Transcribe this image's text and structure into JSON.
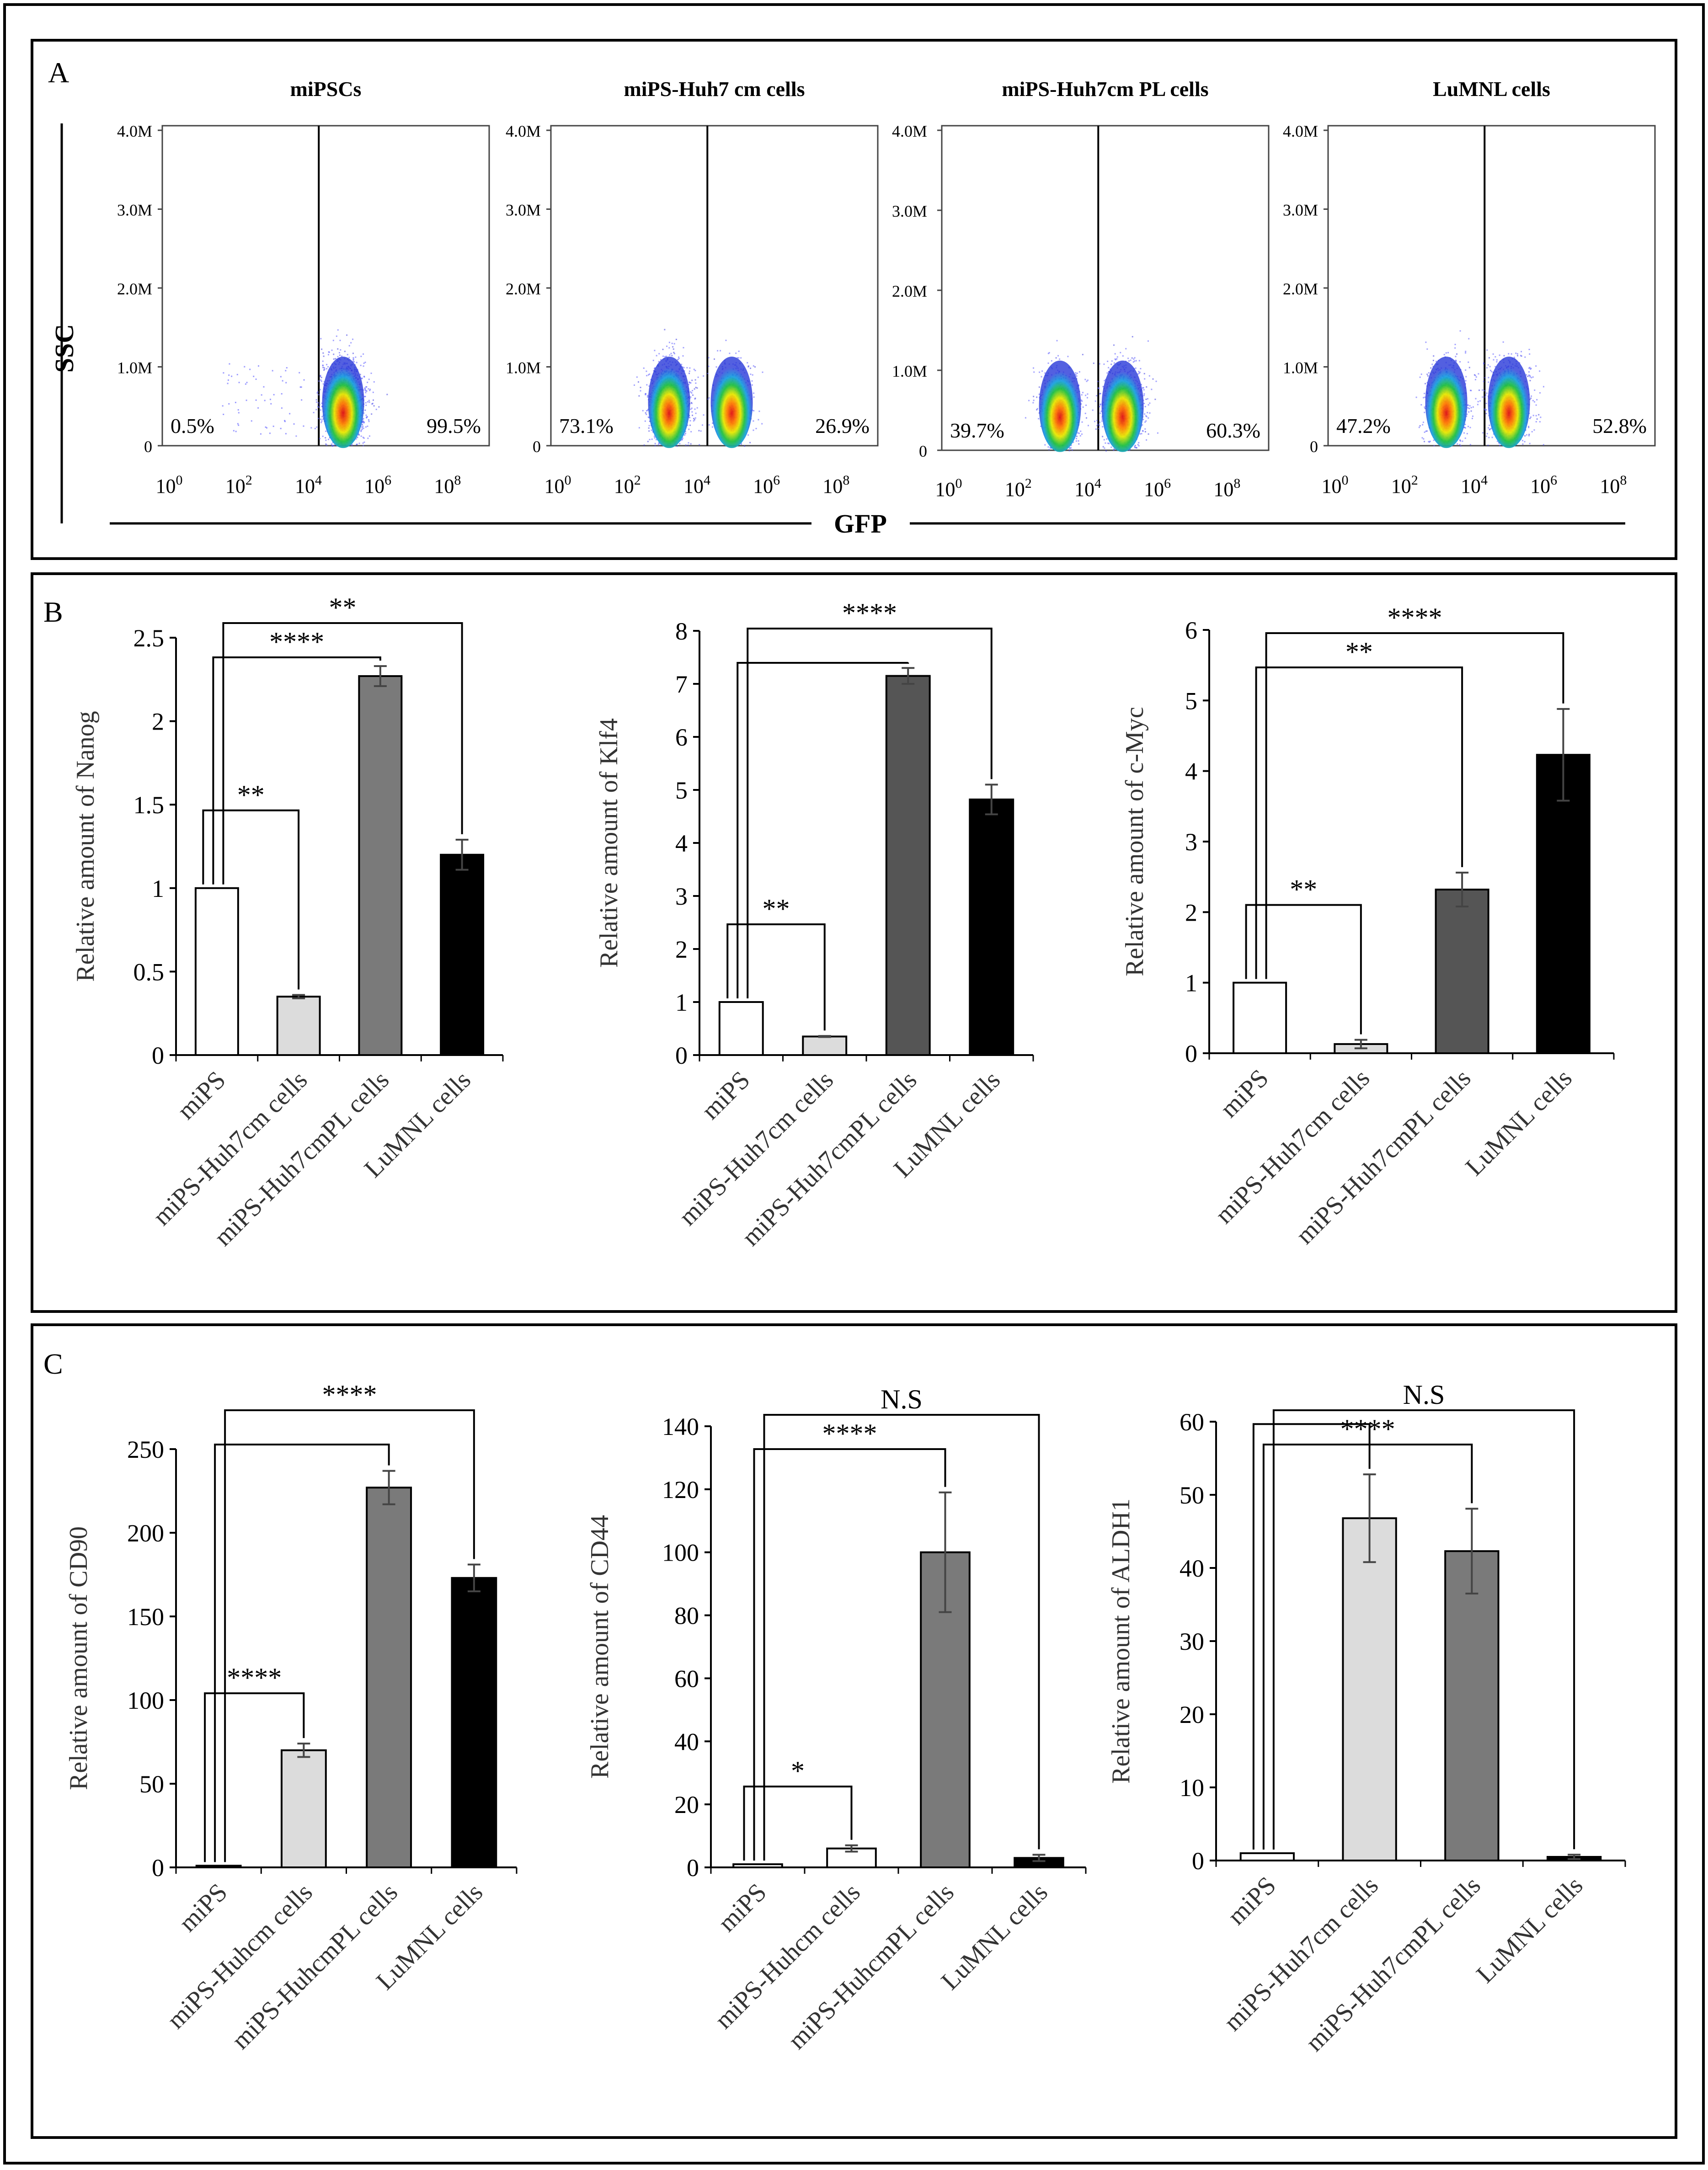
{
  "panels": {
    "A": {
      "letter": "A",
      "y_axis_label": "SSC",
      "x_axis_label": "GFP",
      "y_ticks": [
        "4.0M",
        "3.0M",
        "2.0M",
        "1.0M",
        "0"
      ],
      "x_ticks": [
        {
          "base": "10",
          "exp": "0"
        },
        {
          "base": "10",
          "exp": "2"
        },
        {
          "base": "10",
          "exp": "4"
        },
        {
          "base": "10",
          "exp": "6"
        },
        {
          "base": "10",
          "exp": "8"
        }
      ],
      "plots": [
        {
          "title": "miPSCs",
          "left_pct": "0.5%",
          "right_pct": "99.5%",
          "negative_fraction": 0.005,
          "positive_fraction": 0.995
        },
        {
          "title": "miPS-Huh7 cm cells",
          "left_pct": "73.1%",
          "right_pct": "26.9%",
          "negative_fraction": 0.731,
          "positive_fraction": 0.269
        },
        {
          "title": "miPS-Huh7cm PL cells",
          "left_pct": "39.7%",
          "right_pct": "60.3%",
          "negative_fraction": 0.397,
          "positive_fraction": 0.603
        },
        {
          "title": "LuMNL cells",
          "left_pct": "47.2%",
          "right_pct": "52.8%",
          "negative_fraction": 0.472,
          "positive_fraction": 0.528
        }
      ]
    },
    "B": {
      "letter": "B"
    },
    "C": {
      "letter": "C"
    }
  },
  "chart_data": [
    {
      "id": "nanog",
      "type": "bar",
      "ylabel": "Relative amount of  Nanog",
      "categories": [
        "miPS",
        "miPS-Huh7cm cells",
        "miPS-Huh7cmPL cells",
        "LuMNL cells"
      ],
      "values": [
        1.0,
        0.35,
        2.27,
        1.2
      ],
      "errors": [
        0,
        0.01,
        0.06,
        0.09
      ],
      "ylim": [
        0,
        2.5
      ],
      "yticks": [
        0,
        0.5,
        1,
        1.5,
        2,
        2.5
      ],
      "ytick_labels": [
        "0",
        "0.5",
        "1",
        "1.5",
        "2",
        "2.5"
      ],
      "bar_colors": [
        "#ffffff",
        "#dcdcdc",
        "#7a7a7a",
        "#000000"
      ],
      "significance": [
        {
          "from": 0,
          "to": 1,
          "label": "**"
        },
        {
          "from": 0,
          "to": 2,
          "label": "****"
        },
        {
          "from": 0,
          "to": 3,
          "label": "**"
        }
      ]
    },
    {
      "id": "klf4",
      "type": "bar",
      "ylabel": "Relative amount of Klf4",
      "categories": [
        "miPS",
        "miPS-Huh7cm cells",
        "miPS-Huh7cmPL cells",
        "LuMNL cells"
      ],
      "values": [
        1.0,
        0.35,
        7.15,
        4.82
      ],
      "errors": [
        0,
        0.01,
        0.15,
        0.28
      ],
      "ylim": [
        0,
        8
      ],
      "yticks": [
        0,
        1,
        2,
        3,
        4,
        5,
        6,
        7,
        8
      ],
      "ytick_labels": [
        "0",
        "1",
        "2",
        "3",
        "4",
        "5",
        "6",
        "7",
        "8"
      ],
      "bar_colors": [
        "#ffffff",
        "#dcdcdc",
        "#555555",
        "#000000"
      ],
      "significance": [
        {
          "from": 0,
          "to": 1,
          "label": "**"
        },
        {
          "from": 0,
          "to": 2,
          "label": ""
        },
        {
          "from": 0,
          "to": 3,
          "label": "****"
        }
      ]
    },
    {
      "id": "cmyc",
      "type": "bar",
      "ylabel": "Relative amount of c-Myc",
      "categories": [
        "miPS",
        "miPS-Huh7cm cells",
        "miPS-Huh7cmPL cells",
        "LuMNL cells"
      ],
      "values": [
        1.0,
        0.13,
        2.32,
        4.23
      ],
      "errors": [
        0,
        0.06,
        0.24,
        0.65
      ],
      "ylim": [
        0,
        6
      ],
      "yticks": [
        0,
        1,
        2,
        3,
        4,
        5,
        6
      ],
      "ytick_labels": [
        "0",
        "1",
        "2",
        "3",
        "4",
        "5",
        "6"
      ],
      "bar_colors": [
        "#ffffff",
        "#dcdcdc",
        "#555555",
        "#000000"
      ],
      "significance": [
        {
          "from": 0,
          "to": 1,
          "label": "**"
        },
        {
          "from": 0,
          "to": 2,
          "label": "**"
        },
        {
          "from": 0,
          "to": 3,
          "label": "****"
        }
      ]
    },
    {
      "id": "cd90",
      "type": "bar",
      "ylabel": "Relative amount of CD90",
      "categories": [
        "miPS",
        "miPS-Huhcm cells",
        "miPS-HuhcmPL cells",
        "LuMNL cells"
      ],
      "values": [
        1,
        70,
        227,
        173
      ],
      "errors": [
        0,
        4,
        10,
        8
      ],
      "ylim": [
        0,
        250
      ],
      "yticks": [
        0,
        50,
        100,
        150,
        200,
        250
      ],
      "ytick_labels": [
        "0",
        "50",
        "100",
        "150",
        "200",
        "250"
      ],
      "bar_colors": [
        "#ffffff",
        "#dcdcdc",
        "#7a7a7a",
        "#000000"
      ],
      "significance": [
        {
          "from": 0,
          "to": 1,
          "label": "****"
        },
        {
          "from": 0,
          "to": 2,
          "label": ""
        },
        {
          "from": 0,
          "to": 3,
          "label": "****"
        }
      ]
    },
    {
      "id": "cd44",
      "type": "bar",
      "ylabel": "Relative amount of CD44",
      "categories": [
        "miPS",
        "miPS-Huhcm cells",
        "miPS-HuhcmPL cells",
        "LuMNL cells"
      ],
      "values": [
        1,
        6,
        100,
        3
      ],
      "errors": [
        0,
        1,
        19,
        1
      ],
      "ylim": [
        0,
        140
      ],
      "yticks": [
        0,
        20,
        40,
        60,
        80,
        100,
        120,
        140
      ],
      "ytick_labels": [
        "0",
        "20",
        "40",
        "60",
        "80",
        "100",
        "120",
        "140"
      ],
      "bar_colors": [
        "#ffffff",
        "#ffffff",
        "#7a7a7a",
        "#000000"
      ],
      "significance": [
        {
          "from": 0,
          "to": 1,
          "label": "*"
        },
        {
          "from": 0,
          "to": 2,
          "label": "****"
        },
        {
          "from": 0,
          "to": 3,
          "label": "N.S"
        }
      ]
    },
    {
      "id": "aldh1",
      "type": "bar",
      "ylabel": "Relative amount of ALDH1",
      "categories": [
        "miPS",
        "miPS-Huh7cm cells",
        "miPS-Huh7cmPL cells",
        "LuMNL cells"
      ],
      "values": [
        1,
        46.8,
        42.3,
        0.5
      ],
      "errors": [
        0,
        6,
        5.8,
        0.3
      ],
      "ylim": [
        0,
        60
      ],
      "yticks": [
        0,
        10,
        20,
        30,
        40,
        50,
        60
      ],
      "ytick_labels": [
        "0",
        "10",
        "20",
        "30",
        "40",
        "50",
        "60"
      ],
      "bar_colors": [
        "#ffffff",
        "#dcdcdc",
        "#7a7a7a",
        "#000000"
      ],
      "significance": [
        {
          "from": 0,
          "to": 1,
          "label": ""
        },
        {
          "from": 0,
          "to": 2,
          "label": "****"
        },
        {
          "from": 0,
          "to": 3,
          "label": "N.S"
        }
      ]
    }
  ]
}
